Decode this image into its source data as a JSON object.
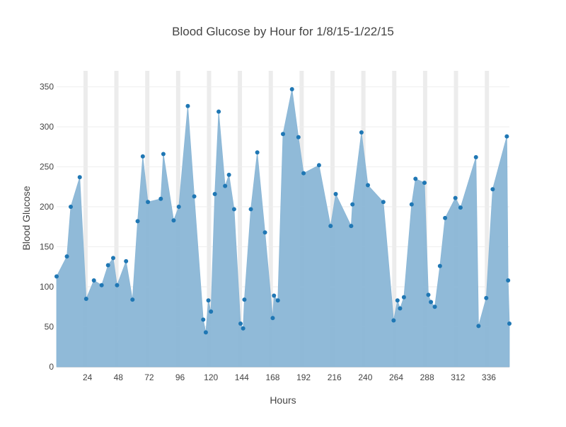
{
  "chart_data": {
    "type": "area",
    "title": "Blood Glucose by Hour for 1/8/15-1/22/15",
    "xlabel": "Hours",
    "ylabel": "Blood Glucose",
    "xlim": [
      0,
      352
    ],
    "ylim": [
      0,
      370
    ],
    "xticks": [
      24,
      48,
      72,
      96,
      120,
      144,
      168,
      192,
      216,
      240,
      264,
      288,
      312,
      336
    ],
    "yticks": [
      0,
      50,
      100,
      150,
      200,
      250,
      300,
      350
    ],
    "grid": "horizontal",
    "colors": {
      "area": "#8ab6d6",
      "marker": "#1f77b4",
      "band": "#ececec",
      "grid": "#eeeeee",
      "axis": "#444444"
    },
    "night_bands": [
      22.5,
      46.5,
      70.5,
      94.5,
      118.5,
      142.5,
      166.5,
      190.5,
      214.5,
      238.5,
      262.5,
      286.5,
      310.5,
      334.5
    ],
    "series": [
      {
        "x": [
          0,
          8,
          11,
          18,
          23,
          29,
          35,
          40,
          44,
          47,
          54,
          59,
          63,
          67,
          71,
          81,
          83,
          91,
          95,
          102,
          107,
          114,
          116,
          118,
          120,
          123,
          131,
          126,
          134,
          138,
          143,
          145,
          146,
          151,
          156,
          162,
          168,
          169,
          172,
          176,
          183,
          188,
          192,
          204,
          213,
          217,
          229,
          230,
          237,
          242,
          254,
          262,
          265,
          267,
          270,
          276,
          279,
          286,
          289,
          291,
          294,
          298,
          302,
          310,
          314,
          326,
          328,
          334,
          339,
          350,
          351,
          352
        ],
        "y": [
          113,
          138,
          200,
          237,
          85,
          108,
          102,
          127,
          136,
          102,
          132,
          84,
          182,
          263,
          206,
          210,
          266,
          183,
          200,
          326,
          213,
          59,
          43,
          83,
          69,
          216,
          226,
          319,
          240,
          197,
          54,
          48,
          84,
          197,
          268,
          168,
          61,
          89,
          83,
          291,
          347,
          287,
          242,
          252,
          176,
          216,
          176,
          203,
          293,
          227,
          206,
          58,
          83,
          73,
          87,
          203,
          235,
          230,
          90,
          81,
          75,
          126,
          186,
          211,
          199,
          262,
          51,
          86,
          222,
          288,
          108,
          54
        ]
      }
    ]
  }
}
